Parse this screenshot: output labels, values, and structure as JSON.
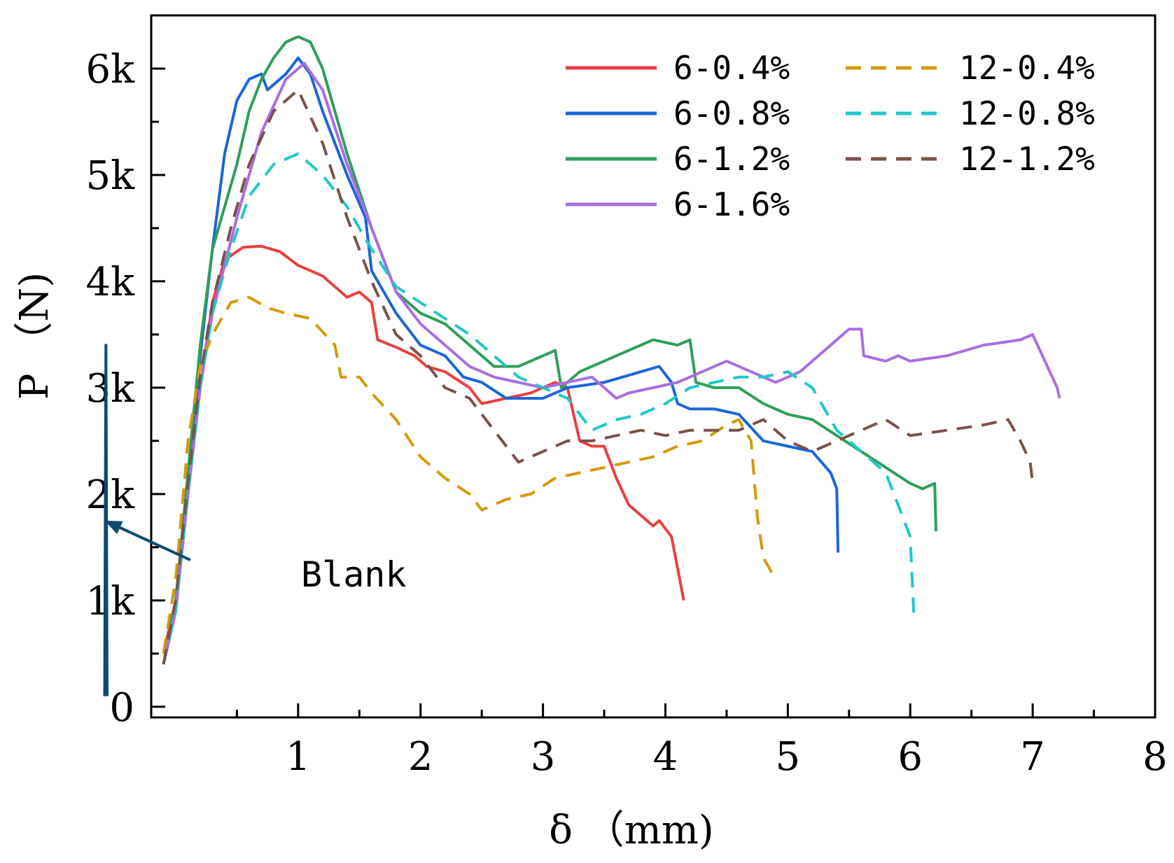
{
  "chart_data": {
    "type": "line",
    "title": "",
    "xlabel": "δ （mm)",
    "ylabel": "P （N)",
    "xlim": [
      -0.2,
      8.0
    ],
    "ylim": [
      -100,
      6500
    ],
    "x_ticks": [
      1,
      2,
      3,
      4,
      5,
      6,
      7,
      8
    ],
    "x_tick_labels": [
      "1",
      "2",
      "3",
      "4",
      "5",
      "6",
      "7",
      "8"
    ],
    "y_ticks": [
      0,
      1000,
      2000,
      3000,
      4000,
      5000,
      6000
    ],
    "y_tick_labels": [
      "0",
      "1k",
      "2k",
      "3k",
      "4k",
      "5k",
      "6k"
    ],
    "legend_position": "top-right",
    "annotation": {
      "text": "Blank",
      "arrow_from": [
        0.12,
        1380
      ],
      "arrow_to": [
        -0.58,
        1750
      ]
    },
    "series": [
      {
        "name": "6-0.4%",
        "color": "#e8403f",
        "dash": "solid",
        "x": [
          -0.1,
          0.0,
          0.1,
          0.2,
          0.3,
          0.4,
          0.55,
          0.7,
          0.85,
          1.0,
          1.2,
          1.4,
          1.5,
          1.6,
          1.65,
          1.8,
          1.95,
          2.05,
          2.2,
          2.4,
          2.5,
          2.7,
          2.9,
          3.1,
          3.2,
          3.3,
          3.4,
          3.5,
          3.6,
          3.7,
          3.8,
          3.9,
          3.95,
          4.05,
          4.1,
          4.15
        ],
        "y": [
          500,
          1000,
          2000,
          3000,
          3800,
          4200,
          4320,
          4330,
          4280,
          4150,
          4050,
          3850,
          3900,
          3800,
          3450,
          3380,
          3300,
          3200,
          3150,
          3000,
          2850,
          2900,
          2950,
          3050,
          3000,
          2500,
          2450,
          2450,
          2150,
          1900,
          1800,
          1700,
          1750,
          1600,
          1300,
          1000
        ]
      },
      {
        "name": "6-0.8%",
        "color": "#1a66d6",
        "dash": "solid",
        "x": [
          -0.1,
          0.0,
          0.1,
          0.2,
          0.3,
          0.4,
          0.5,
          0.6,
          0.7,
          0.75,
          0.9,
          1.0,
          1.1,
          1.2,
          1.4,
          1.55,
          1.6,
          1.8,
          2.0,
          2.2,
          2.35,
          2.5,
          2.7,
          2.9,
          3.0,
          3.2,
          3.5,
          3.8,
          3.95,
          4.05,
          4.1,
          4.2,
          4.4,
          4.6,
          4.8,
          5.0,
          5.2,
          5.35,
          5.4,
          5.41
        ],
        "y": [
          400,
          900,
          2000,
          3300,
          4300,
          5200,
          5700,
          5900,
          5950,
          5800,
          5950,
          6100,
          5950,
          5600,
          5000,
          4600,
          4100,
          3700,
          3400,
          3300,
          3100,
          3050,
          2900,
          2900,
          2900,
          3000,
          3050,
          3150,
          3200,
          3050,
          2850,
          2800,
          2800,
          2750,
          2500,
          2450,
          2400,
          2200,
          2050,
          1450
        ]
      },
      {
        "name": "6-1.2%",
        "color": "#2f9e5b",
        "dash": "solid",
        "x": [
          -0.1,
          0.0,
          0.1,
          0.2,
          0.3,
          0.4,
          0.5,
          0.6,
          0.7,
          0.8,
          0.9,
          1.0,
          1.1,
          1.2,
          1.4,
          1.6,
          1.8,
          2.0,
          2.2,
          2.4,
          2.6,
          2.8,
          3.0,
          3.1,
          3.15,
          3.3,
          3.5,
          3.7,
          3.9,
          4.1,
          4.2,
          4.25,
          4.4,
          4.6,
          4.8,
          5.0,
          5.2,
          5.4,
          5.6,
          5.8,
          6.0,
          6.1,
          6.2,
          6.21
        ],
        "y": [
          400,
          1000,
          2200,
          3400,
          4300,
          4700,
          5100,
          5600,
          5900,
          6100,
          6250,
          6300,
          6250,
          6000,
          5200,
          4500,
          3900,
          3700,
          3600,
          3400,
          3200,
          3200,
          3300,
          3350,
          3000,
          3150,
          3250,
          3350,
          3450,
          3400,
          3450,
          3050,
          3000,
          3000,
          2850,
          2750,
          2700,
          2550,
          2400,
          2250,
          2100,
          2050,
          2100,
          1650
        ]
      },
      {
        "name": "6-1.6%",
        "color": "#a86fe0",
        "dash": "solid",
        "x": [
          -0.1,
          0.0,
          0.1,
          0.2,
          0.3,
          0.5,
          0.7,
          0.9,
          1.05,
          1.2,
          1.4,
          1.6,
          1.8,
          2.0,
          2.2,
          2.4,
          2.6,
          2.8,
          3.0,
          3.2,
          3.4,
          3.6,
          3.7,
          3.9,
          4.1,
          4.3,
          4.5,
          4.7,
          4.9,
          5.1,
          5.3,
          5.5,
          5.6,
          5.62,
          5.8,
          5.9,
          6.0,
          6.3,
          6.6,
          6.9,
          7.0,
          7.2,
          7.22
        ],
        "y": [
          400,
          900,
          2000,
          3000,
          3700,
          4600,
          5400,
          5900,
          6050,
          5800,
          5100,
          4500,
          3900,
          3600,
          3400,
          3200,
          3100,
          3050,
          3000,
          3050,
          3100,
          2900,
          2950,
          3000,
          3050,
          3150,
          3250,
          3150,
          3050,
          3150,
          3350,
          3550,
          3550,
          3300,
          3250,
          3300,
          3250,
          3300,
          3400,
          3450,
          3500,
          3000,
          2900
        ]
      },
      {
        "name": "12-0.4%",
        "color": "#d49a0a",
        "dash": "dashed",
        "x": [
          -0.1,
          0.0,
          0.1,
          0.2,
          0.3,
          0.45,
          0.6,
          0.75,
          0.9,
          1.1,
          1.3,
          1.35,
          1.5,
          1.6,
          1.8,
          2.0,
          2.2,
          2.4,
          2.5,
          2.7,
          2.9,
          3.1,
          3.3,
          3.5,
          3.7,
          3.9,
          4.1,
          4.3,
          4.5,
          4.6,
          4.7,
          4.75,
          4.8,
          4.9
        ],
        "y": [
          500,
          1200,
          2500,
          3200,
          3500,
          3800,
          3850,
          3750,
          3700,
          3650,
          3400,
          3100,
          3100,
          2950,
          2700,
          2350,
          2150,
          2000,
          1850,
          1950,
          2000,
          2150,
          2200,
          2250,
          2300,
          2350,
          2450,
          2500,
          2650,
          2700,
          2500,
          1800,
          1400,
          1200
        ]
      },
      {
        "name": "12-0.8%",
        "color": "#21c7c7",
        "dash": "dashed",
        "x": [
          -0.1,
          0.0,
          0.1,
          0.2,
          0.3,
          0.45,
          0.6,
          0.8,
          1.0,
          1.2,
          1.4,
          1.6,
          1.8,
          2.0,
          2.2,
          2.4,
          2.6,
          2.8,
          3.0,
          3.2,
          3.4,
          3.6,
          3.8,
          4.0,
          4.2,
          4.4,
          4.6,
          4.8,
          5.0,
          5.2,
          5.4,
          5.6,
          5.8,
          5.9,
          6.0,
          6.02,
          6.03
        ],
        "y": [
          400,
          900,
          2000,
          3000,
          3700,
          4300,
          4800,
          5100,
          5200,
          5000,
          4700,
          4300,
          3950,
          3800,
          3650,
          3500,
          3300,
          3100,
          3000,
          2900,
          2600,
          2700,
          2750,
          2850,
          3000,
          3050,
          3100,
          3100,
          3150,
          3000,
          2600,
          2400,
          2200,
          1900,
          1600,
          1100,
          850
        ]
      },
      {
        "name": "12-1.2%",
        "color": "#7b5148",
        "dash": "dashed",
        "x": [
          -0.1,
          0.0,
          0.1,
          0.2,
          0.3,
          0.45,
          0.6,
          0.8,
          1.0,
          1.2,
          1.4,
          1.6,
          1.8,
          2.0,
          2.2,
          2.4,
          2.6,
          2.8,
          3.0,
          3.2,
          3.4,
          3.6,
          3.8,
          4.0,
          4.2,
          4.4,
          4.6,
          4.8,
          5.0,
          5.2,
          5.4,
          5.6,
          5.8,
          6.0,
          6.3,
          6.6,
          6.8,
          6.9,
          6.98,
          7.0
        ],
        "y": [
          400,
          1000,
          2100,
          3100,
          3800,
          4500,
          5100,
          5600,
          5800,
          5300,
          4600,
          4000,
          3500,
          3300,
          3000,
          2900,
          2600,
          2300,
          2400,
          2500,
          2500,
          2550,
          2600,
          2550,
          2600,
          2600,
          2600,
          2700,
          2500,
          2400,
          2500,
          2600,
          2700,
          2550,
          2600,
          2650,
          2700,
          2500,
          2300,
          2100
        ]
      },
      {
        "name": "Blank",
        "color": "#0d4a6e",
        "dash": "solid",
        "x": [
          -0.58,
          -0.57,
          -0.56
        ],
        "y": [
          100,
          3400,
          100
        ]
      }
    ]
  }
}
